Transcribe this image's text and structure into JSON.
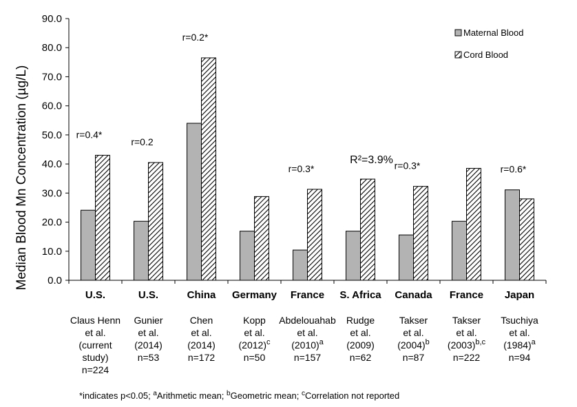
{
  "chart_data": {
    "type": "bar",
    "ylabel": "Median Blood Mn Concentration (µg/L)",
    "ylim": [
      0,
      90
    ],
    "yticks": [
      "0.0",
      "10.0",
      "20.0",
      "30.0",
      "40.0",
      "50.0",
      "60.0",
      "70.0",
      "80.0",
      "90.0"
    ],
    "legend_position": "top-right",
    "grid": false,
    "colors": {
      "maternal": "#b3b3b3",
      "cord": "#ffffff",
      "stroke": "#000000"
    },
    "series": [
      {
        "name": "Maternal Blood",
        "values": [
          24.1,
          20.3,
          54.0,
          16.9,
          10.4,
          16.9,
          15.6,
          20.3,
          31.1
        ]
      },
      {
        "name": "Cord Blood",
        "values": [
          43.0,
          40.5,
          76.5,
          28.8,
          31.3,
          34.8,
          32.3,
          38.5,
          28.0
        ]
      }
    ],
    "categories": [
      {
        "country": "U.S.",
        "study": [
          "Claus Henn",
          "et al.",
          "(current",
          "study)",
          "n=224"
        ],
        "annotation": "r=0.4*"
      },
      {
        "country": "U.S.",
        "study": [
          "Gunier",
          "et al.",
          "(2014)",
          "n=53"
        ],
        "annotation": "r=0.2"
      },
      {
        "country": "China",
        "study": [
          "Chen",
          "et al.",
          "(2014)",
          "n=172"
        ],
        "annotation": "r=0.2*"
      },
      {
        "country": "Germany",
        "study": [
          "Kopp",
          "et al.",
          "(2012)",
          "n=50"
        ],
        "study_sup": "c",
        "annotation": ""
      },
      {
        "country": "France",
        "study": [
          "Abdelouahab",
          "et al.",
          "(2010)",
          "n=157"
        ],
        "study_sup": "a",
        "annotation": "r=0.3*"
      },
      {
        "country": "S. Africa",
        "study": [
          "Rudge",
          "et al.",
          "(2009)",
          "n=62"
        ],
        "annotation": "R²=3.9%"
      },
      {
        "country": "Canada",
        "study": [
          "Takser",
          "et al.",
          "(2004)",
          "n=87"
        ],
        "study_sup": "b",
        "annotation": "r=0.3*"
      },
      {
        "country": "France",
        "study": [
          "Takser",
          "et al.",
          "(2003)",
          "n=222"
        ],
        "study_sup": "b,c",
        "annotation": ""
      },
      {
        "country": "Japan",
        "study": [
          "Tsuchiya",
          "et al.",
          "(1984)",
          "n=94"
        ],
        "study_sup": "a",
        "annotation": "r=0.6*"
      }
    ],
    "footnote": {
      "lead": "*indicates p<0.05; ",
      "a_sup": "a",
      "a_text": "Arithmetic mean; ",
      "b_sup": "b",
      "b_text": "Geometric mean; ",
      "c_sup": "c",
      "c_text": "Correlation not reported"
    }
  }
}
